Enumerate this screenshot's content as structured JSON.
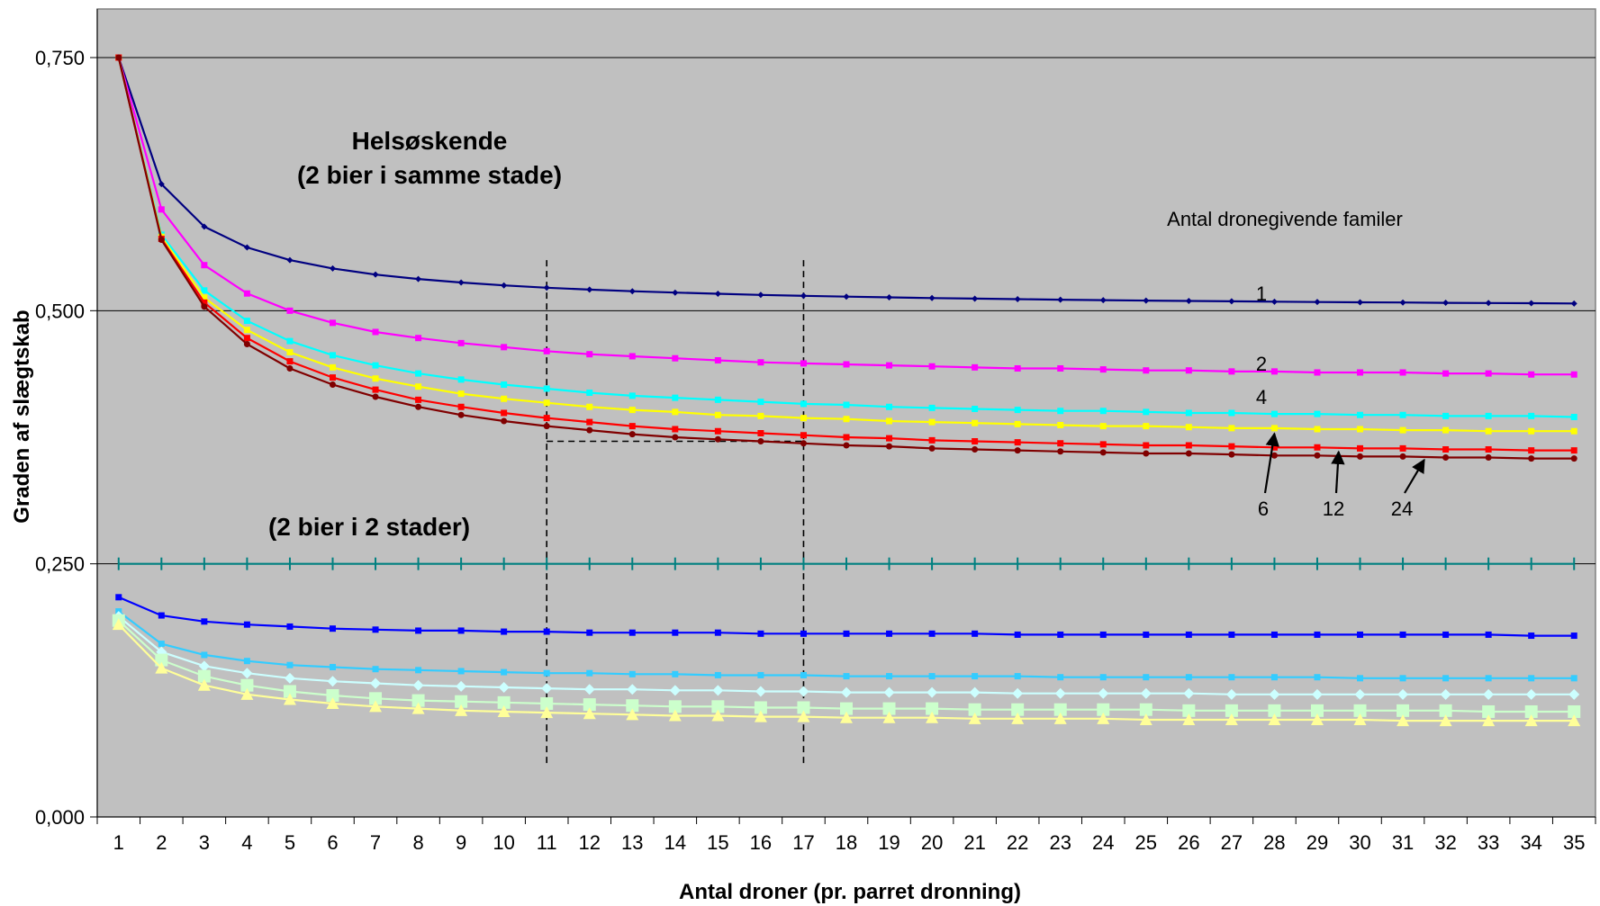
{
  "chart_data": {
    "type": "line",
    "title": "",
    "xlabel": "Antal droner (pr. parret dronning)",
    "ylabel": "Graden af slægtskab",
    "x": [
      1,
      2,
      3,
      4,
      5,
      6,
      7,
      8,
      9,
      10,
      11,
      12,
      13,
      14,
      15,
      16,
      17,
      18,
      19,
      20,
      21,
      22,
      23,
      24,
      25,
      26,
      27,
      28,
      29,
      30,
      31,
      32,
      33,
      34,
      35
    ],
    "x_tick_labels": [
      "1",
      "2",
      "3",
      "4",
      "5",
      "6",
      "7",
      "8",
      "9",
      "10",
      "11",
      "12",
      "13",
      "14",
      "15",
      "16",
      "17",
      "18",
      "19",
      "20",
      "21",
      "22",
      "23",
      "24",
      "25",
      "26",
      "27",
      "28",
      "29",
      "30",
      "31",
      "32",
      "33",
      "34",
      "35"
    ],
    "ylim": [
      0,
      0.75
    ],
    "y_ticks": [
      0,
      0.25,
      0.5,
      0.75
    ],
    "y_tick_labels": [
      "0,000",
      "0,250",
      "0,500",
      "0,750"
    ],
    "grid": "horizontal",
    "legend": "none",
    "colors": {
      "plot_bg": "#c0c0c0",
      "grid": "#000000"
    },
    "series": [
      {
        "group": "same_hive",
        "label": "1",
        "color": "#000080",
        "marker": "diamond",
        "y": [
          0.75,
          0.625,
          0.583,
          0.5625,
          0.55,
          0.5417,
          0.5357,
          0.5313,
          0.5278,
          0.525,
          0.5227,
          0.5208,
          0.5192,
          0.5179,
          0.5167,
          0.5156,
          0.5147,
          0.5139,
          0.5132,
          0.5125,
          0.5119,
          0.5114,
          0.5109,
          0.5104,
          0.51,
          0.5096,
          0.5093,
          0.5089,
          0.5086,
          0.5083,
          0.5081,
          0.5078,
          0.5076,
          0.5074,
          0.5071
        ]
      },
      {
        "group": "same_hive",
        "label": "2",
        "color": "#ff00ff",
        "marker": "square",
        "y": [
          0.75,
          0.6,
          0.545,
          0.517,
          0.5,
          0.488,
          0.479,
          0.473,
          0.468,
          0.464,
          0.46,
          0.457,
          0.455,
          0.453,
          0.451,
          0.449,
          0.448,
          0.447,
          0.446,
          0.445,
          0.444,
          0.443,
          0.443,
          0.442,
          0.441,
          0.441,
          0.44,
          0.44,
          0.439,
          0.439,
          0.439,
          0.438,
          0.438,
          0.437,
          0.437
        ]
      },
      {
        "group": "same_hive",
        "label": "4",
        "color": "#00ffff",
        "marker": "square",
        "y": [
          0.75,
          0.575,
          0.52,
          0.49,
          0.47,
          0.456,
          0.446,
          0.438,
          0.432,
          0.427,
          0.423,
          0.419,
          0.416,
          0.414,
          0.412,
          0.41,
          0.408,
          0.407,
          0.405,
          0.404,
          0.403,
          0.402,
          0.401,
          0.401,
          0.4,
          0.399,
          0.399,
          0.398,
          0.398,
          0.397,
          0.397,
          0.396,
          0.396,
          0.396,
          0.395
        ]
      },
      {
        "group": "same_hive",
        "label": "6",
        "color": "#ffff00",
        "marker": "square",
        "y": [
          0.75,
          0.573,
          0.513,
          0.481,
          0.459,
          0.444,
          0.433,
          0.425,
          0.418,
          0.413,
          0.409,
          0.405,
          0.402,
          0.4,
          0.397,
          0.396,
          0.394,
          0.393,
          0.391,
          0.39,
          0.389,
          0.388,
          0.387,
          0.386,
          0.386,
          0.385,
          0.384,
          0.384,
          0.383,
          0.383,
          0.382,
          0.382,
          0.381,
          0.381,
          0.381
        ]
      },
      {
        "group": "same_hive",
        "label": "12",
        "color": "#ff0000",
        "marker": "square",
        "y": [
          0.75,
          0.571,
          0.508,
          0.473,
          0.45,
          0.434,
          0.422,
          0.412,
          0.405,
          0.399,
          0.394,
          0.39,
          0.386,
          0.383,
          0.381,
          0.379,
          0.377,
          0.375,
          0.374,
          0.372,
          0.371,
          0.37,
          0.369,
          0.368,
          0.367,
          0.367,
          0.366,
          0.365,
          0.365,
          0.364,
          0.364,
          0.363,
          0.363,
          0.362,
          0.362
        ]
      },
      {
        "group": "same_hive",
        "label": "24",
        "color": "#800000",
        "marker": "circle",
        "y": [
          0.75,
          0.57,
          0.504,
          0.467,
          0.443,
          0.427,
          0.415,
          0.405,
          0.397,
          0.391,
          0.386,
          0.382,
          0.378,
          0.375,
          0.373,
          0.371,
          0.369,
          0.367,
          0.366,
          0.364,
          0.363,
          0.362,
          0.361,
          0.36,
          0.359,
          0.359,
          0.358,
          0.357,
          0.357,
          0.356,
          0.356,
          0.355,
          0.355,
          0.354,
          0.354
        ]
      },
      {
        "group": "two_hives",
        "label": "",
        "color": "#008080",
        "marker": "plus",
        "y": [
          0.25,
          0.25,
          0.25,
          0.25,
          0.25,
          0.25,
          0.25,
          0.25,
          0.25,
          0.25,
          0.25,
          0.25,
          0.25,
          0.25,
          0.25,
          0.25,
          0.25,
          0.25,
          0.25,
          0.25,
          0.25,
          0.25,
          0.25,
          0.25,
          0.25,
          0.25,
          0.25,
          0.25,
          0.25,
          0.25,
          0.25,
          0.25,
          0.25,
          0.25,
          0.25
        ]
      },
      {
        "group": "two_hives",
        "label": "",
        "color": "#0000ff",
        "marker": "square",
        "y": [
          0.217,
          0.199,
          0.193,
          0.19,
          0.188,
          0.186,
          0.185,
          0.184,
          0.184,
          0.183,
          0.183,
          0.182,
          0.182,
          0.182,
          0.182,
          0.181,
          0.181,
          0.181,
          0.181,
          0.181,
          0.181,
          0.18,
          0.18,
          0.18,
          0.18,
          0.18,
          0.18,
          0.18,
          0.18,
          0.18,
          0.18,
          0.18,
          0.18,
          0.179,
          0.179
        ]
      },
      {
        "group": "two_hives",
        "label": "",
        "color": "#33ccff",
        "marker": "square",
        "y": [
          0.203,
          0.171,
          0.16,
          0.154,
          0.15,
          0.148,
          0.146,
          0.145,
          0.144,
          0.143,
          0.142,
          0.142,
          0.141,
          0.141,
          0.14,
          0.14,
          0.14,
          0.139,
          0.139,
          0.139,
          0.139,
          0.139,
          0.138,
          0.138,
          0.138,
          0.138,
          0.138,
          0.138,
          0.138,
          0.137,
          0.137,
          0.137,
          0.137,
          0.137,
          0.137
        ]
      },
      {
        "group": "two_hives",
        "label": "",
        "color": "#ccffff",
        "marker": "diamond",
        "y": [
          0.198,
          0.163,
          0.149,
          0.142,
          0.137,
          0.134,
          0.132,
          0.13,
          0.129,
          0.128,
          0.127,
          0.126,
          0.126,
          0.125,
          0.125,
          0.124,
          0.124,
          0.123,
          0.123,
          0.123,
          0.123,
          0.122,
          0.122,
          0.122,
          0.122,
          0.122,
          0.121,
          0.121,
          0.121,
          0.121,
          0.121,
          0.121,
          0.121,
          0.121,
          0.121
        ]
      },
      {
        "group": "two_hives",
        "label": "",
        "color": "#ccffcc",
        "marker": "square-big",
        "y": [
          0.194,
          0.155,
          0.139,
          0.13,
          0.124,
          0.12,
          0.117,
          0.115,
          0.114,
          0.113,
          0.112,
          0.111,
          0.11,
          0.109,
          0.109,
          0.108,
          0.108,
          0.107,
          0.107,
          0.107,
          0.106,
          0.106,
          0.106,
          0.106,
          0.106,
          0.105,
          0.105,
          0.105,
          0.105,
          0.105,
          0.105,
          0.105,
          0.104,
          0.104,
          0.104
        ]
      },
      {
        "group": "two_hives",
        "label": "",
        "color": "#ffff99",
        "marker": "triangle",
        "y": [
          0.19,
          0.147,
          0.13,
          0.121,
          0.116,
          0.112,
          0.109,
          0.107,
          0.105,
          0.104,
          0.103,
          0.102,
          0.101,
          0.1,
          0.1,
          0.099,
          0.099,
          0.098,
          0.098,
          0.098,
          0.097,
          0.097,
          0.097,
          0.097,
          0.096,
          0.096,
          0.096,
          0.096,
          0.096,
          0.096,
          0.095,
          0.095,
          0.095,
          0.095,
          0.095
        ]
      }
    ],
    "annotations": {
      "group_title_1": "Helsøskende",
      "group_title_2": "(2 bier i samme stade)",
      "group_title_3": "(2 bier i 2 stader)",
      "legend_caption": "Antal dronegivende familer",
      "curve_labels": [
        "1",
        "2",
        "4",
        "6",
        "12",
        "24"
      ],
      "reference_lines": {
        "vertical_x": [
          11,
          17
        ],
        "vertical_y_range": [
          0.05,
          0.55
        ],
        "horizontal_y": 0.371,
        "horizontal_x_range": [
          11,
          17
        ]
      },
      "arrows": [
        {
          "label": "6",
          "to_x": 28,
          "to_y": 0.384
        },
        {
          "label": "12",
          "to_x": 29.5,
          "to_y": 0.366
        },
        {
          "label": "24",
          "to_x": 31.5,
          "to_y": 0.358
        }
      ]
    }
  }
}
